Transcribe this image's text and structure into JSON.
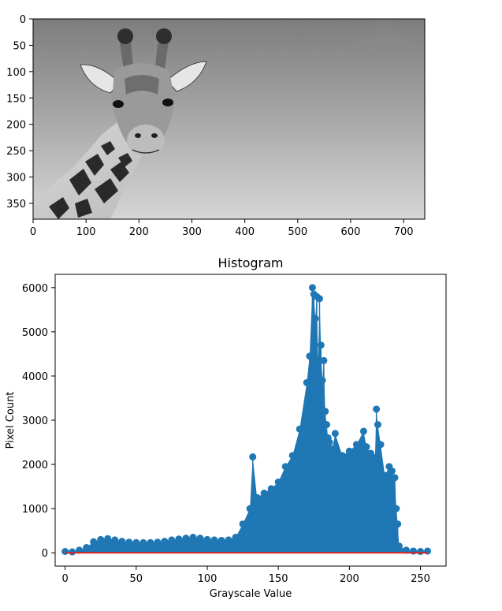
{
  "chart_data": [
    {
      "type": "image",
      "subject": "grayscale giraffe photo",
      "xticks": [
        "0",
        "100",
        "200",
        "300",
        "400",
        "500",
        "600",
        "700"
      ],
      "yticks": [
        "0",
        "50",
        "100",
        "150",
        "200",
        "250",
        "300",
        "350"
      ],
      "xlim": [
        0,
        740
      ],
      "ylim": [
        380,
        0
      ]
    },
    {
      "type": "stem",
      "title": "Histogram",
      "xlabel": "Grayscale Value",
      "ylabel": "Pixel Count",
      "xlim": [
        -7,
        268
      ],
      "ylim": [
        -300,
        6300
      ],
      "xticks": [
        "0",
        "50",
        "100",
        "150",
        "200",
        "250"
      ],
      "yticks": [
        "0",
        "1000",
        "2000",
        "3000",
        "4000",
        "5000",
        "6000"
      ],
      "colors": {
        "stem": "#1f77b4",
        "baseline": "#d62728"
      },
      "bins_x": [
        0,
        5,
        10,
        15,
        20,
        25,
        30,
        35,
        40,
        45,
        50,
        55,
        60,
        65,
        70,
        75,
        80,
        85,
        90,
        95,
        100,
        105,
        110,
        115,
        120,
        125,
        130,
        132,
        135,
        140,
        145,
        150,
        155,
        160,
        165,
        170,
        172,
        174,
        175,
        176,
        177,
        178,
        179,
        180,
        181,
        182,
        183,
        184,
        185,
        186,
        188,
        190,
        195,
        200,
        205,
        210,
        212,
        215,
        218,
        219,
        220,
        222,
        225,
        228,
        230,
        232,
        233,
        234,
        235,
        240,
        245,
        250,
        255
      ],
      "values": [
        30,
        20,
        60,
        120,
        250,
        300,
        320,
        290,
        260,
        240,
        230,
        230,
        230,
        240,
        260,
        290,
        310,
        330,
        350,
        330,
        300,
        290,
        280,
        290,
        350,
        650,
        1000,
        2170,
        1250,
        1350,
        1450,
        1600,
        1950,
        2200,
        2800,
        3850,
        4450,
        6000,
        5850,
        5300,
        5800,
        4350,
        5750,
        4700,
        3900,
        4350,
        3200,
        2900,
        2600,
        2500,
        2350,
        2700,
        2200,
        2300,
        2450,
        2750,
        2400,
        2250,
        2150,
        3250,
        2900,
        2450,
        1750,
        1950,
        1850,
        1700,
        1000,
        650,
        150,
        60,
        40,
        30,
        40
      ]
    }
  ]
}
